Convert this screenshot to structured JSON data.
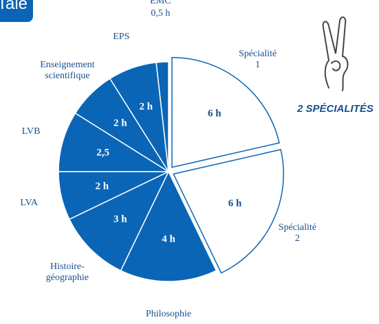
{
  "badge": "Tale",
  "side_note": "2 SPÉCIALITÉS",
  "chart_data": {
    "type": "pie",
    "categories": [
      "Spécialité\n1",
      "Spécialité\n2",
      "Philosophie",
      "Histoire-\ngéographie",
      "LVA",
      "LVB",
      "Enseignement\nscientifique",
      "EPS",
      "EMC"
    ],
    "values": [
      6,
      6,
      4,
      3,
      2,
      2.5,
      2,
      2,
      0.5
    ],
    "value_labels": [
      "6 h",
      "6 h",
      "4 h",
      "3 h",
      "2 h",
      "2,5",
      "2 h",
      "2 h",
      "0,5 h"
    ],
    "colors": [
      "#ffffff",
      "#ffffff",
      "#0b65b6",
      "#0b65b6",
      "#0b65b6",
      "#0b65b6",
      "#0b65b6",
      "#0b65b6",
      "#0b65b6"
    ],
    "explode": [
      true,
      true,
      false,
      false,
      false,
      false,
      false,
      false,
      false
    ]
  }
}
